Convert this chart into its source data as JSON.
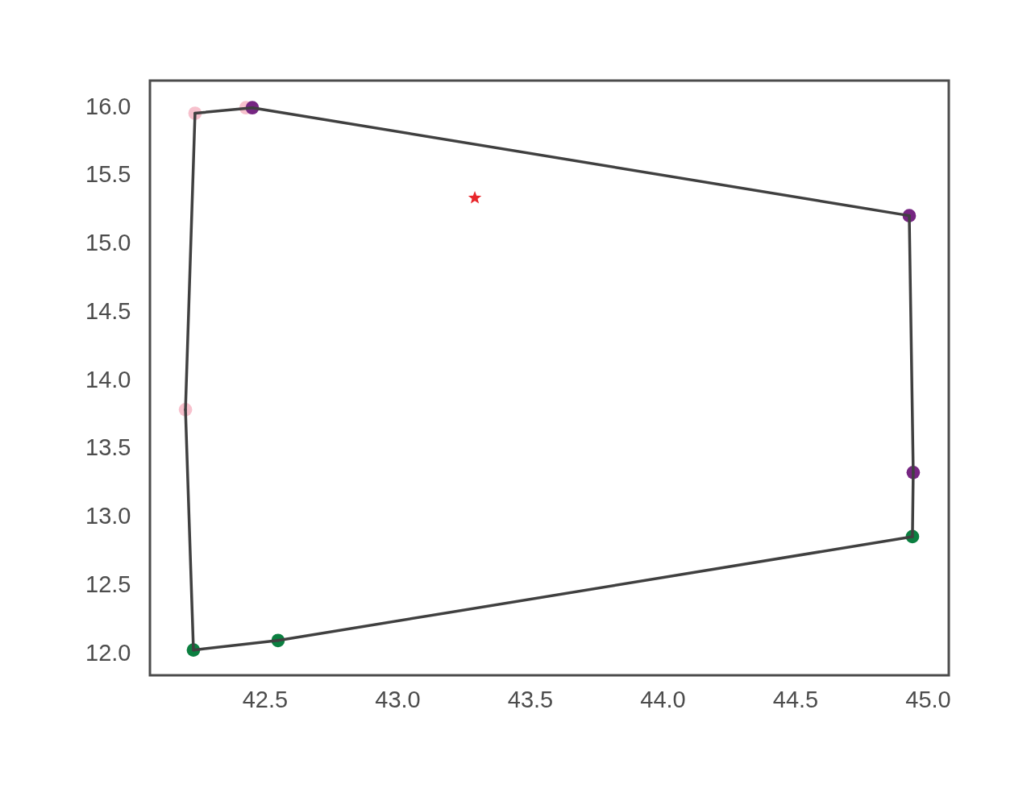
{
  "chart_data": {
    "type": "scatter",
    "xlim": [
      42.067,
      45.079
    ],
    "ylim": [
      11.835,
      16.189
    ],
    "xticks": [
      42.5,
      {
        "value": 43,
        "label": "43.0"
      },
      43.5,
      {
        "value": 44,
        "label": "44.0"
      },
      44.5,
      {
        "value": 45,
        "label": "45.0"
      }
    ],
    "yticks": [
      {
        "value": 12,
        "label": "12.0"
      },
      12.5,
      {
        "value": 13,
        "label": "13.0"
      },
      13.5,
      {
        "value": 14,
        "label": "14.0"
      },
      14.5,
      {
        "value": 15,
        "label": "15.0"
      },
      15.5,
      {
        "value": 16,
        "label": "16.0"
      }
    ],
    "grid": false,
    "line_style": "solid",
    "series": [
      {
        "marker": "circle",
        "color": "#f7c1cd",
        "x": [
          42.237,
          42.429,
          42.201
        ],
        "values": [
          15.95,
          15.99,
          13.78
        ]
      },
      {
        "marker": "circle",
        "color": "#762682",
        "x": [
          42.453,
          44.93,
          44.945
        ],
        "values": [
          15.99,
          15.2,
          13.32
        ]
      },
      {
        "marker": "circle",
        "color": "#0b7f40",
        "x": [
          42.231,
          42.55,
          44.942
        ],
        "values": [
          12.02,
          12.09,
          12.85
        ]
      },
      {
        "type": "line",
        "marker": "none",
        "color": "#404040",
        "x": [
          42.231,
          42.55
        ],
        "values": [
          12.02,
          12.09
        ]
      },
      {
        "type": "line",
        "marker": "none",
        "color": "#404040",
        "x": [
          42.55,
          44.942
        ],
        "values": [
          12.09,
          12.85
        ]
      },
      {
        "type": "line",
        "marker": "none",
        "color": "#404040",
        "x": [
          44.942,
          44.945
        ],
        "values": [
          12.85,
          13.32
        ]
      },
      {
        "type": "line",
        "marker": "none",
        "color": "#404040",
        "x": [
          44.945,
          44.93
        ],
        "values": [
          13.32,
          15.2
        ]
      },
      {
        "type": "line",
        "marker": "none",
        "color": "#404040",
        "x": [
          44.93,
          42.453
        ],
        "values": [
          15.2,
          15.99
        ]
      },
      {
        "type": "line",
        "marker": "none",
        "color": "#404040",
        "x": [
          42.453,
          42.237
        ],
        "values": [
          15.99,
          15.95
        ]
      },
      {
        "type": "line",
        "marker": "none",
        "color": "#404040",
        "x": [
          42.237,
          42.201
        ],
        "values": [
          15.95,
          13.78
        ]
      },
      {
        "type": "line",
        "marker": "none",
        "color": "#404040",
        "x": [
          42.201,
          42.231
        ],
        "values": [
          13.78,
          12.02
        ]
      },
      {
        "marker": "star",
        "color": "#e8262b",
        "x": [
          43.292
        ],
        "values": [
          15.33
        ]
      }
    ]
  }
}
